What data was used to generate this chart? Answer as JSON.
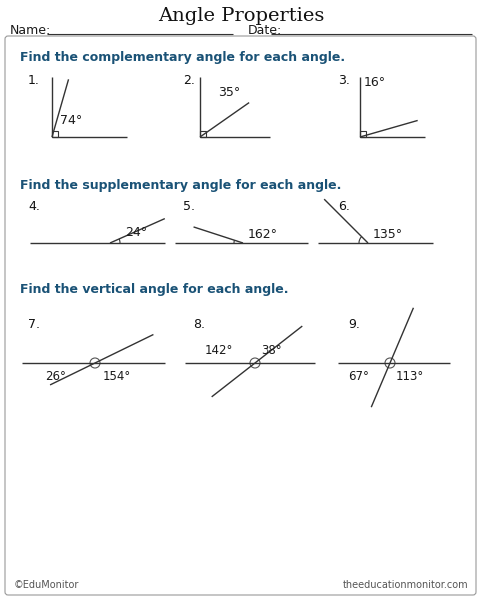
{
  "title": "Angle Properties",
  "name_label": "Name:",
  "date_label": "Date:",
  "section1_label": "Find the complementary angle for each angle.",
  "section2_label": "Find the supplementary angle for each angle.",
  "section3_label": "Find the vertical angle for each angle.",
  "footer_left": "©EduMonitor",
  "footer_right": "theeducationmonitor.com",
  "bg_color": "#ffffff",
  "section_color": "#1a5276",
  "text_color": "#000000",
  "title_fs": 14,
  "body_fs": 9,
  "section_fs": 9
}
